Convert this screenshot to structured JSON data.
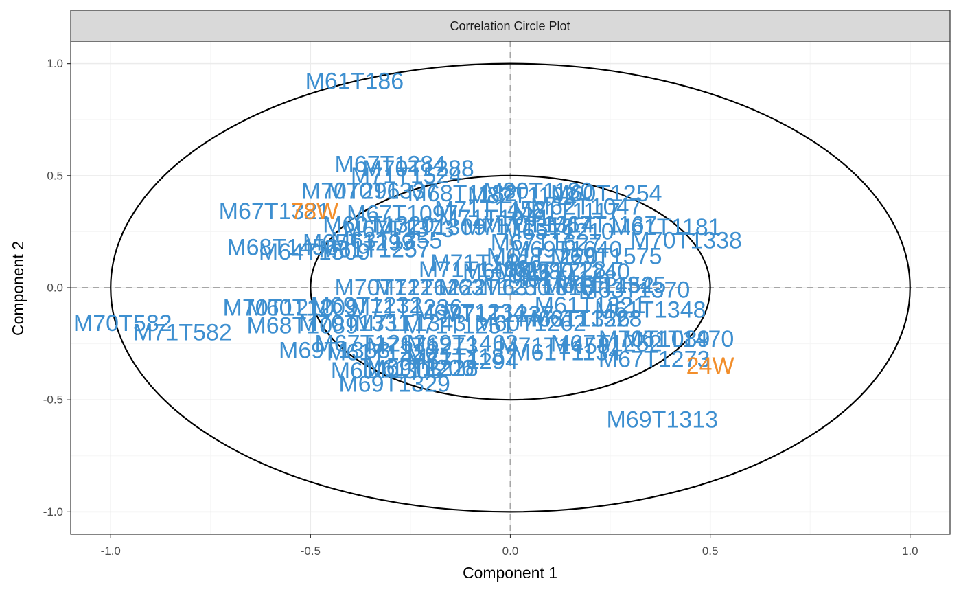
{
  "colors": {
    "variable": "#3d8fd0",
    "sample": "#f28e2b",
    "circle": "#000000",
    "refline": "#a6a6a6",
    "grid_major": "#ebebeb",
    "grid_minor": "#f5f5f5",
    "strip_bg": "#d9d9d9"
  },
  "chart_data": {
    "type": "scatter",
    "title": "Correlation Circle Plot",
    "xlabel": "Component  1",
    "ylabel": "Component  2",
    "xlim": [
      -1.1,
      1.1
    ],
    "ylim": [
      -1.1,
      1.1
    ],
    "x_ticks": [
      -1.0,
      -0.5,
      0.0,
      0.5,
      1.0
    ],
    "x_tick_labels": [
      "-1.0",
      "-0.5",
      "0.0",
      "0.5",
      "1.0"
    ],
    "y_ticks": [
      -1.0,
      -0.5,
      0.0,
      0.5,
      1.0
    ],
    "y_tick_labels": [
      "-1.0",
      "-0.5",
      "0.0",
      "0.5",
      "1.0"
    ],
    "circles": [
      1.0,
      0.5
    ],
    "grid": true,
    "reference_lines": [
      0
    ],
    "series": [
      {
        "group": "variables",
        "points": [
          {
            "label": "M61T186",
            "x": -0.39,
            "y": 0.92
          },
          {
            "label": "M67T1284",
            "x": -0.3,
            "y": 0.55
          },
          {
            "label": "M70T1288",
            "x": -0.23,
            "y": 0.53
          },
          {
            "label": "M71T1524",
            "x": -0.26,
            "y": 0.5
          },
          {
            "label": "M70T296",
            "x": -0.4,
            "y": 0.43
          },
          {
            "label": "M70T1337",
            "x": -0.32,
            "y": 0.43
          },
          {
            "label": "M68T1182",
            "x": -0.12,
            "y": 0.42
          },
          {
            "label": "M80T1180",
            "x": 0.07,
            "y": 0.43
          },
          {
            "label": "M60T1254",
            "x": 0.24,
            "y": 0.42
          },
          {
            "label": "M82T1192",
            "x": 0.03,
            "y": 0.41
          },
          {
            "label": "M67T1321",
            "x": -0.59,
            "y": 0.34
          },
          {
            "label": "M67T1097",
            "x": -0.27,
            "y": 0.33
          },
          {
            "label": "M71T1452",
            "x": -0.05,
            "y": 0.35
          },
          {
            "label": "M62T1047",
            "x": 0.19,
            "y": 0.36
          },
          {
            "label": "M61T1117",
            "x": 0.14,
            "y": 0.34
          },
          {
            "label": "M71T1041",
            "x": -0.04,
            "y": 0.31
          },
          {
            "label": "M60T1320",
            "x": -0.33,
            "y": 0.28
          },
          {
            "label": "M67T1373",
            "x": -0.28,
            "y": 0.26
          },
          {
            "label": "M71T1309",
            "x": -0.2,
            "y": 0.27
          },
          {
            "label": "M71T1318",
            "x": 0.02,
            "y": 0.27
          },
          {
            "label": "M70T1314",
            "x": 0.07,
            "y": 0.28
          },
          {
            "label": "M61T1181",
            "x": 0.39,
            "y": 0.27
          },
          {
            "label": "M67T1167",
            "x": 0.23,
            "y": 0.28
          },
          {
            "label": "M70T1338",
            "x": 0.44,
            "y": 0.21
          },
          {
            "label": "M65T1210",
            "x": 0.12,
            "y": 0.25
          },
          {
            "label": "M68T1456",
            "x": -0.57,
            "y": 0.18
          },
          {
            "label": "M65T1299",
            "x": -0.38,
            "y": 0.2
          },
          {
            "label": "M63T1355",
            "x": -0.31,
            "y": 0.21
          },
          {
            "label": "M61T1257",
            "x": -0.34,
            "y": 0.17
          },
          {
            "label": "M64T1509",
            "x": -0.49,
            "y": 0.16
          },
          {
            "label": "M67T1627",
            "x": 0.09,
            "y": 0.2
          },
          {
            "label": "M69T1640",
            "x": 0.14,
            "y": 0.17
          },
          {
            "label": "M69T1575",
            "x": 0.24,
            "y": 0.14
          },
          {
            "label": "M61T1220",
            "x": 0.08,
            "y": 0.14
          },
          {
            "label": "M71T1466",
            "x": -0.06,
            "y": 0.11
          },
          {
            "label": "M61T1240",
            "x": 0.16,
            "y": 0.07
          },
          {
            "label": "M71T1458",
            "x": -0.09,
            "y": 0.08
          },
          {
            "label": "M61T1228",
            "x": 0.1,
            "y": 0.08
          },
          {
            "label": "M60T1380",
            "x": 0.02,
            "y": 0.07
          },
          {
            "label": "M61T1148",
            "x": 0.13,
            "y": 0.04
          },
          {
            "label": "M71T1222",
            "x": -0.2,
            "y": 0.0
          },
          {
            "label": "M70T1226",
            "x": -0.3,
            "y": 0.0
          },
          {
            "label": "M63T1250",
            "x": -0.04,
            "y": 0.0
          },
          {
            "label": "M61T1452",
            "x": 0.22,
            "y": 0.01
          },
          {
            "label": "M63T1370",
            "x": 0.31,
            "y": -0.01
          },
          {
            "label": "M61T1345",
            "x": 0.25,
            "y": 0.01
          },
          {
            "label": "M63T1318",
            "x": 0.07,
            "y": 0.0
          },
          {
            "label": "M70T1210",
            "x": -0.58,
            "y": -0.09
          },
          {
            "label": "M60T1209",
            "x": -0.52,
            "y": -0.09
          },
          {
            "label": "M69T1232",
            "x": -0.36,
            "y": -0.08
          },
          {
            "label": "M71T1236",
            "x": -0.26,
            "y": -0.09
          },
          {
            "label": "M61T1348",
            "x": 0.35,
            "y": -0.1
          },
          {
            "label": "M61T1321",
            "x": 0.2,
            "y": -0.08
          },
          {
            "label": "M63T1326",
            "x": 0.16,
            "y": -0.14
          },
          {
            "label": "M67T1234",
            "x": -0.1,
            "y": -0.11
          },
          {
            "label": "M71T1237",
            "x": -0.03,
            "y": -0.12
          },
          {
            "label": "M70T582",
            "x": -0.97,
            "y": -0.16
          },
          {
            "label": "M71T582",
            "x": -0.82,
            "y": -0.2
          },
          {
            "label": "M68T1089",
            "x": -0.52,
            "y": -0.17
          },
          {
            "label": "M70T1331",
            "x": -0.39,
            "y": -0.16
          },
          {
            "label": "M71T1343",
            "x": -0.25,
            "y": -0.16
          },
          {
            "label": "M71T1251",
            "x": -0.13,
            "y": -0.17
          },
          {
            "label": "M60T1262",
            "x": 0.05,
            "y": -0.16
          },
          {
            "label": "M61T1528",
            "x": 0.19,
            "y": -0.14
          },
          {
            "label": "M61T1470",
            "x": 0.42,
            "y": -0.23
          },
          {
            "label": "M70T1089",
            "x": 0.36,
            "y": -0.23
          },
          {
            "label": "M67T1262",
            "x": -0.35,
            "y": -0.25
          },
          {
            "label": "M71T1273",
            "x": -0.22,
            "y": -0.26
          },
          {
            "label": "M69T1462",
            "x": -0.12,
            "y": -0.25
          },
          {
            "label": "M71T1458",
            "x": 0.11,
            "y": -0.26
          },
          {
            "label": "M67T1252",
            "x": 0.24,
            "y": -0.25
          },
          {
            "label": "M69T1388",
            "x": -0.44,
            "y": -0.28
          },
          {
            "label": "M61T1220",
            "x": -0.32,
            "y": -0.29
          },
          {
            "label": "M71T1187",
            "x": -0.12,
            "y": -0.31
          },
          {
            "label": "M61T1134",
            "x": 0.14,
            "y": -0.29
          },
          {
            "label": "M67T1273",
            "x": 0.36,
            "y": -0.32
          },
          {
            "label": "M67T1294",
            "x": -0.12,
            "y": -0.33
          },
          {
            "label": "M61T1305",
            "x": -0.31,
            "y": -0.37
          },
          {
            "label": "M69T1228",
            "x": -0.22,
            "y": -0.36
          },
          {
            "label": "M61T1206",
            "x": -0.23,
            "y": -0.36
          },
          {
            "label": "M69T1329",
            "x": -0.29,
            "y": -0.43
          },
          {
            "label": "M69T1313",
            "x": 0.38,
            "y": -0.59
          }
        ]
      },
      {
        "group": "samples",
        "points": [
          {
            "label": "78W",
            "x": -0.49,
            "y": 0.34
          },
          {
            "label": "24W",
            "x": 0.5,
            "y": -0.35
          }
        ]
      }
    ]
  }
}
